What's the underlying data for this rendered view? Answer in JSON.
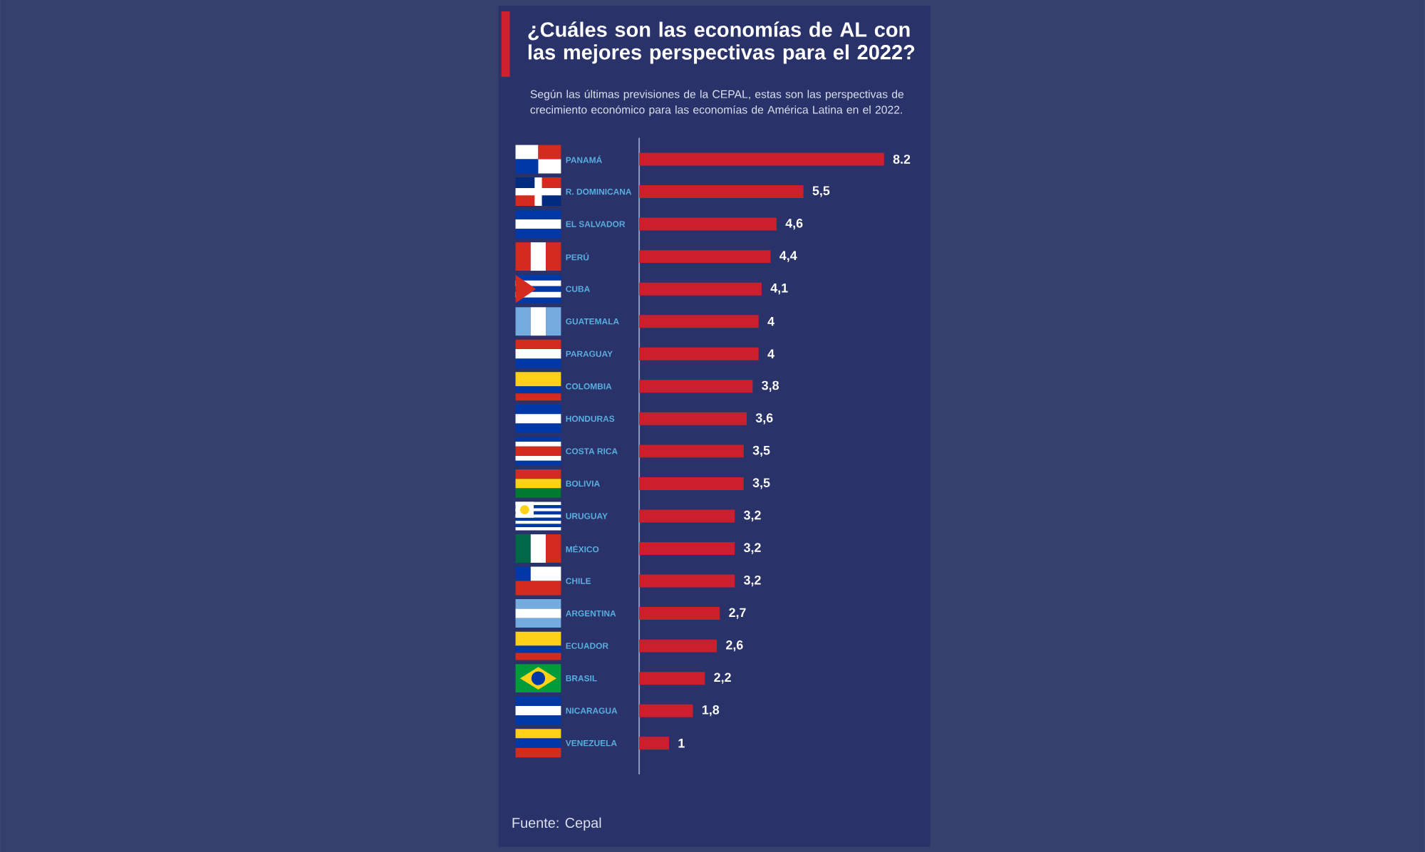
{
  "chart_data": {
    "type": "bar",
    "orientation": "horizontal",
    "title": "¿Cuáles son las economías de AL con las mejores perspectivas para el 2022?",
    "subtitle": "Según las últimas previsiones de la CEPAL, estas son las perspectivas de crecimiento económico para las economías de América Latina en el 2022.",
    "categories": [
      "PANAMÁ",
      "R. DOMINICANA",
      "EL SALVADOR",
      "PERÚ",
      "CUBA",
      "GUATEMALA",
      "PARAGUAY",
      "COLOMBIA",
      "HONDURAS",
      "COSTA RICA",
      "BOLIVIA",
      "URUGUAY",
      "MÉXICO",
      "CHILE",
      "ARGENTINA",
      "ECUADOR",
      "BRASIL",
      "NICARAGUA",
      "VENEZUELA"
    ],
    "values": [
      8.2,
      5.5,
      4.6,
      4.4,
      4.1,
      4,
      4,
      3.8,
      3.6,
      3.5,
      3.5,
      3.2,
      3.2,
      3.2,
      2.7,
      2.6,
      2.2,
      1.8,
      1
    ],
    "value_labels": [
      "8.2",
      "5,5",
      "4,6",
      "4,4",
      "4,1",
      "4",
      "4",
      "3,8",
      "3,6",
      "3,5",
      "3,5",
      "3,2",
      "3,2",
      "3,2",
      "2,7",
      "2,6",
      "2,2",
      "1,8",
      "1"
    ],
    "color": "#cc1f2d",
    "annotations": [
      "Fuente: Cepal"
    ]
  }
}
